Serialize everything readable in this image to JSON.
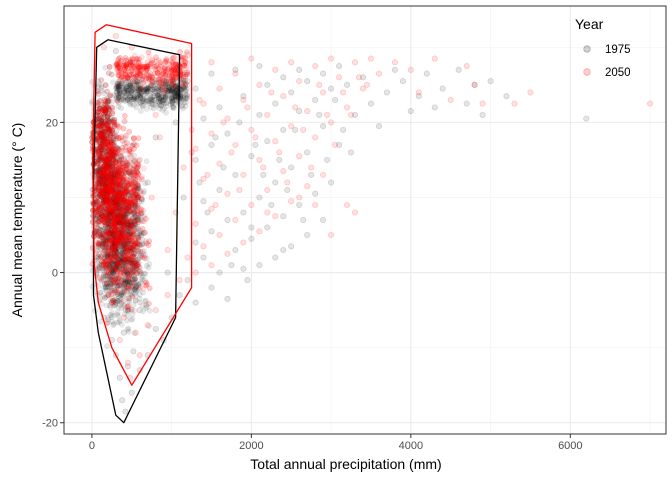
{
  "chart_data": {
    "type": "scatter",
    "title": "",
    "xlabel": "Total annual precipitation (mm)",
    "ylabel": "Annual mean temperature (° C)",
    "xlim": [
      -350,
      7200
    ],
    "ylim": [
      -21.5,
      35.5
    ],
    "x_ticks": [
      0,
      2000,
      4000,
      6000
    ],
    "y_ticks": [
      -20,
      0,
      20
    ],
    "grid": true,
    "legend": {
      "title": "Year",
      "position": "top-right"
    },
    "series": [
      {
        "name": "1975",
        "color": "#000000",
        "point_alpha": 0.1,
        "hull": [
          [
            400,
            -20
          ],
          [
            1050,
            -6
          ],
          [
            1100,
            29
          ],
          [
            200,
            31
          ],
          [
            60,
            30
          ],
          [
            20,
            12
          ],
          [
            20,
            -3
          ],
          [
            80,
            -8
          ],
          [
            300,
            -19
          ]
        ],
        "points": [
          [
            420,
            -18.5
          ],
          [
            380,
            -17
          ],
          [
            500,
            -16
          ],
          [
            350,
            -14
          ],
          [
            600,
            -13
          ],
          [
            450,
            -12.5
          ],
          [
            300,
            -11
          ],
          [
            700,
            -11
          ],
          [
            520,
            -10.5
          ],
          [
            250,
            -9
          ],
          [
            900,
            -9
          ],
          [
            400,
            -8
          ],
          [
            800,
            -7.5
          ],
          [
            150,
            -6
          ],
          [
            1000,
            -6
          ],
          [
            600,
            -5
          ],
          [
            300,
            -4
          ],
          [
            1100,
            -3
          ],
          [
            1300,
            -4
          ],
          [
            1500,
            -2
          ],
          [
            1700,
            -3.5
          ],
          [
            1200,
            -1
          ],
          [
            1600,
            0
          ],
          [
            1900,
            0.5
          ],
          [
            2100,
            1
          ],
          [
            1400,
            2
          ],
          [
            2300,
            2
          ],
          [
            1800,
            3
          ],
          [
            2500,
            3.5
          ],
          [
            1300,
            4
          ],
          [
            2000,
            4.5
          ],
          [
            2700,
            5
          ],
          [
            1500,
            5.5
          ],
          [
            2200,
            6
          ],
          [
            1700,
            7
          ],
          [
            2400,
            7.5
          ],
          [
            2900,
            7
          ],
          [
            1900,
            8
          ],
          [
            2600,
            9
          ],
          [
            1400,
            9.5
          ],
          [
            2100,
            10
          ],
          [
            2800,
            10.5
          ],
          [
            1600,
            11
          ],
          [
            2300,
            12
          ],
          [
            3000,
            12
          ],
          [
            1800,
            13
          ],
          [
            2500,
            14
          ],
          [
            1300,
            15
          ],
          [
            2000,
            15.5
          ],
          [
            2700,
            16
          ],
          [
            1500,
            17
          ],
          [
            2200,
            17.5
          ],
          [
            3100,
            17
          ],
          [
            1700,
            18.5
          ],
          [
            2400,
            19
          ],
          [
            2900,
            19.5
          ],
          [
            1400,
            20.5
          ],
          [
            2100,
            21
          ],
          [
            2600,
            21.5
          ],
          [
            3300,
            21
          ],
          [
            1600,
            22
          ],
          [
            2300,
            22.5
          ],
          [
            2800,
            23
          ],
          [
            3500,
            22.5
          ],
          [
            1900,
            23.5
          ],
          [
            2500,
            24
          ],
          [
            3000,
            24.5
          ],
          [
            3700,
            24
          ],
          [
            4100,
            23.5
          ],
          [
            2200,
            25
          ],
          [
            2700,
            25.5
          ],
          [
            3200,
            25
          ],
          [
            3900,
            25.5
          ],
          [
            4400,
            24.5
          ],
          [
            4800,
            25
          ],
          [
            5000,
            25.5
          ],
          [
            2400,
            26
          ],
          [
            2900,
            26.5
          ],
          [
            3400,
            26
          ],
          [
            3800,
            27
          ],
          [
            4200,
            26.5
          ],
          [
            4600,
            27
          ],
          [
            1500,
            26.5
          ],
          [
            1800,
            27
          ],
          [
            2100,
            27.5
          ],
          [
            2600,
            27
          ],
          [
            3100,
            27.5
          ],
          [
            4900,
            21
          ],
          [
            5200,
            23.5
          ],
          [
            6200,
            20.5
          ],
          [
            4300,
            22
          ],
          [
            3600,
            19.5
          ],
          [
            4000,
            21.5
          ],
          [
            4700,
            22.5
          ],
          [
            2000,
            6
          ],
          [
            2400,
            3
          ],
          [
            1100,
            24
          ],
          [
            1200,
            25.5
          ],
          [
            1000,
            25
          ],
          [
            1300,
            24.5
          ],
          [
            900,
            23
          ],
          [
            150,
            20
          ],
          [
            200,
            10
          ],
          [
            100,
            5
          ],
          [
            600,
            2
          ],
          [
            700,
            12
          ],
          [
            800,
            18
          ],
          [
            500,
            28
          ],
          [
            300,
            29.5
          ],
          [
            1050,
            20
          ],
          [
            950,
            0
          ],
          [
            1150,
            10
          ],
          [
            1250,
            16
          ],
          [
            1350,
            12
          ],
          [
            1450,
            8
          ],
          [
            1550,
            18
          ],
          [
            1650,
            14
          ],
          [
            1750,
            1
          ],
          [
            1850,
            20
          ],
          [
            1950,
            -1
          ],
          [
            2050,
            17
          ],
          [
            2150,
            13
          ],
          [
            2250,
            9
          ],
          [
            2350,
            15
          ],
          [
            2450,
            11
          ],
          [
            2550,
            19
          ],
          [
            2650,
            7
          ],
          [
            2750,
            13
          ],
          [
            2850,
            21
          ],
          [
            2950,
            15
          ],
          [
            3050,
            23
          ],
          [
            3150,
            19
          ],
          [
            3250,
            16
          ]
        ]
      },
      {
        "name": "2050",
        "color": "#ff0000",
        "point_alpha": 0.12,
        "hull": [
          [
            500,
            -15
          ],
          [
            1250,
            -2
          ],
          [
            1250,
            30.5
          ],
          [
            180,
            33
          ],
          [
            40,
            32
          ],
          [
            10,
            15
          ],
          [
            30,
            1
          ],
          [
            80,
            -4
          ],
          [
            250,
            -10
          ]
        ],
        "points": [
          [
            480,
            -14
          ],
          [
            450,
            -12
          ],
          [
            600,
            -11
          ],
          [
            350,
            -9
          ],
          [
            550,
            -8
          ],
          [
            700,
            -7
          ],
          [
            400,
            -6
          ],
          [
            800,
            -5
          ],
          [
            250,
            -4
          ],
          [
            950,
            -3
          ],
          [
            600,
            -2
          ],
          [
            1100,
            -1
          ],
          [
            1300,
            0
          ],
          [
            1500,
            1
          ],
          [
            1200,
            2
          ],
          [
            1700,
            2.5
          ],
          [
            1400,
            3.5
          ],
          [
            1900,
            4
          ],
          [
            1600,
            5
          ],
          [
            2100,
            5.5
          ],
          [
            1300,
            6.5
          ],
          [
            1800,
            7
          ],
          [
            2300,
            7.5
          ],
          [
            1500,
            8.5
          ],
          [
            2000,
            9
          ],
          [
            2500,
            9.5
          ],
          [
            1700,
            10.5
          ],
          [
            2200,
            11
          ],
          [
            2700,
            11.5
          ],
          [
            1400,
            12.5
          ],
          [
            1900,
            13
          ],
          [
            2400,
            13.5
          ],
          [
            2900,
            13
          ],
          [
            1600,
            14.5
          ],
          [
            2100,
            15
          ],
          [
            2600,
            15.5
          ],
          [
            1300,
            16.5
          ],
          [
            1800,
            17
          ],
          [
            2300,
            17.5
          ],
          [
            2800,
            18
          ],
          [
            1500,
            18.5
          ],
          [
            2000,
            19
          ],
          [
            2500,
            19.5
          ],
          [
            3000,
            20
          ],
          [
            1700,
            20.5
          ],
          [
            2200,
            21
          ],
          [
            2700,
            21.5
          ],
          [
            3200,
            22
          ],
          [
            1400,
            22.5
          ],
          [
            1900,
            23
          ],
          [
            2400,
            23.5
          ],
          [
            2900,
            24
          ],
          [
            3400,
            24.5
          ],
          [
            1600,
            24.5
          ],
          [
            2100,
            25
          ],
          [
            2600,
            25.5
          ],
          [
            3100,
            26
          ],
          [
            3600,
            26.5
          ],
          [
            4000,
            27
          ],
          [
            1800,
            26.5
          ],
          [
            2300,
            27
          ],
          [
            2800,
            27.5
          ],
          [
            3300,
            28
          ],
          [
            3800,
            28
          ],
          [
            4300,
            28.5
          ],
          [
            4700,
            27.5
          ],
          [
            1500,
            28
          ],
          [
            2000,
            28.5
          ],
          [
            2500,
            28
          ],
          [
            3000,
            28.5
          ],
          [
            3500,
            28.5
          ],
          [
            4500,
            23
          ],
          [
            4900,
            22.5
          ],
          [
            5300,
            22.5
          ],
          [
            5500,
            24
          ],
          [
            7000,
            22.5
          ],
          [
            4100,
            24
          ],
          [
            4800,
            25
          ],
          [
            3300,
            8
          ],
          [
            3000,
            5
          ],
          [
            2600,
            10
          ],
          [
            2800,
            9
          ],
          [
            2200,
            8
          ],
          [
            3200,
            9
          ],
          [
            1100,
            27
          ],
          [
            1200,
            29
          ],
          [
            1000,
            26
          ],
          [
            900,
            24
          ],
          [
            800,
            21
          ],
          [
            150,
            30
          ],
          [
            300,
            31.5
          ],
          [
            500,
            30
          ],
          [
            700,
            28
          ],
          [
            200,
            20
          ],
          [
            100,
            12
          ],
          [
            400,
            5
          ],
          [
            600,
            15
          ],
          [
            750,
            10
          ],
          [
            850,
            18
          ],
          [
            950,
            3
          ],
          [
            1050,
            8
          ],
          [
            1150,
            14
          ],
          [
            1250,
            19
          ],
          [
            1350,
            23
          ],
          [
            1450,
            13
          ],
          [
            1550,
            9
          ],
          [
            1650,
            20
          ],
          [
            1750,
            16
          ],
          [
            1850,
            11
          ],
          [
            1950,
            22
          ],
          [
            2050,
            18
          ],
          [
            2150,
            14
          ],
          [
            2250,
            24
          ],
          [
            2350,
            16
          ],
          [
            2450,
            12
          ],
          [
            2550,
            22
          ],
          [
            2650,
            19
          ],
          [
            2750,
            14
          ],
          [
            2850,
            25
          ],
          [
            2950,
            21
          ],
          [
            3050,
            17
          ],
          [
            3150,
            24
          ],
          [
            3250,
            21
          ],
          [
            3350,
            26
          ],
          [
            3450,
            25
          ]
        ]
      }
    ]
  }
}
